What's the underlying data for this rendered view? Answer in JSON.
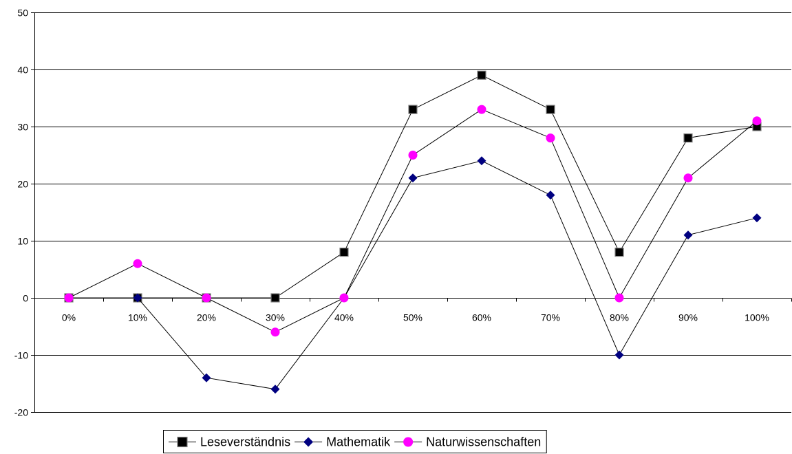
{
  "chart_data": {
    "type": "line",
    "title": "",
    "xlabel": "",
    "ylabel": "",
    "categories": [
      "0%",
      "10%",
      "20%",
      "30%",
      "40%",
      "50%",
      "60%",
      "70%",
      "80%",
      "90%",
      "100%"
    ],
    "ylim": [
      -20,
      50
    ],
    "yticks": [
      -20,
      -10,
      0,
      10,
      20,
      30,
      40,
      50
    ],
    "grid": "horizontal",
    "legend_position": "bottom",
    "series": [
      {
        "name": "Leseverständnis",
        "marker": "square",
        "marker_color": "#000000",
        "line_color": "#000000",
        "values": [
          0,
          0,
          0,
          0,
          8,
          33,
          39,
          33,
          8,
          28,
          30
        ]
      },
      {
        "name": "Mathematik",
        "marker": "diamond",
        "marker_color": "#000080",
        "line_color": "#000000",
        "values": [
          0,
          0,
          -14,
          -16,
          0,
          21,
          24,
          18,
          -10,
          11,
          14
        ]
      },
      {
        "name": "Naturwissenschaften",
        "marker": "circle",
        "marker_color": "#ff00ff",
        "line_color": "#000000",
        "values": [
          0,
          6,
          0,
          -6,
          0,
          25,
          33,
          28,
          0,
          21,
          31
        ]
      }
    ]
  }
}
